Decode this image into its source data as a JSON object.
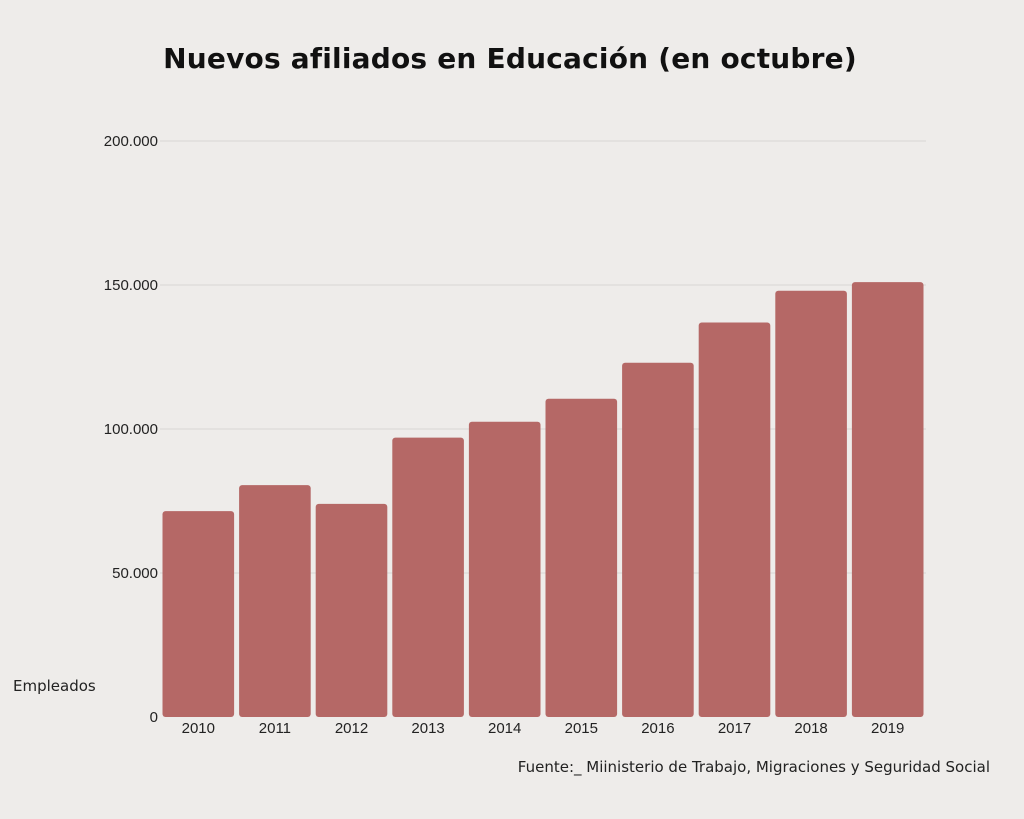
{
  "chart_data": {
    "type": "bar",
    "title": "Nuevos afiliados en Educación (en octubre)",
    "ylabel": "Empleados",
    "xlabel": "",
    "categories": [
      "2010",
      "2011",
      "2012",
      "2013",
      "2014",
      "2015",
      "2016",
      "2017",
      "2018",
      "2019"
    ],
    "values": [
      71500,
      80500,
      74000,
      97000,
      102500,
      110500,
      123000,
      137000,
      148000,
      151000
    ],
    "ylim": [
      0,
      200000
    ],
    "yticks": [
      0,
      50000,
      100000,
      150000,
      200000
    ],
    "ytick_labels": [
      "0",
      "50.000",
      "100.000",
      "150.000",
      "200.000"
    ],
    "grid": true,
    "source": "Fuente:_ Miinisterio de Trabajo, Migraciones y Seguridad Social",
    "colors": {
      "bar": "#b56866",
      "grid": "#d8d6d4",
      "background": "#eeecea"
    }
  }
}
